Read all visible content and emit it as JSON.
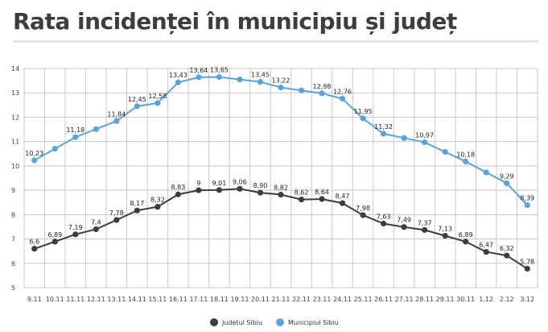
{
  "title": "Rata incidenței în municipiu și județ",
  "chart_data": {
    "type": "line",
    "title": "Rata incidenței în municipiu și județ",
    "xlabel": "",
    "ylabel": "",
    "ylim": [
      5,
      14
    ],
    "yticks": [
      "5",
      "6",
      "7",
      "8",
      "9",
      "10",
      "11",
      "12",
      "13",
      "14"
    ],
    "grid": true,
    "legend_position": "bottom",
    "categories": [
      "9.11",
      "10.11",
      "11.11",
      "12.11",
      "13.11",
      "14.11",
      "15.11",
      "16.11",
      "17.11",
      "18.11",
      "19.11",
      "20.11",
      "21.11",
      "22.11",
      "23.11",
      "24.11",
      "25.11",
      "26.11",
      "27.11",
      "28.11",
      "29.11",
      "30.11",
      "1.12",
      "2.12",
      "3.12"
    ],
    "series": [
      {
        "name": "Judetul Sibiu",
        "color": "#3d3d3d",
        "values": [
          6.6,
          6.89,
          7.19,
          7.4,
          7.78,
          8.17,
          8.32,
          8.83,
          9,
          9.01,
          9.06,
          8.9,
          8.82,
          8.62,
          8.64,
          8.47,
          7.98,
          7.63,
          7.49,
          7.37,
          7.13,
          6.89,
          6.47,
          6.32,
          5.78
        ],
        "labels": [
          "6,6",
          "6,89",
          "7,19",
          "7,4",
          "7,78",
          "8,17",
          "8,32",
          "8,83",
          "9",
          "9,01",
          "9,06",
          "8,90",
          "8,82",
          "8,62",
          "8,64",
          "8,47",
          "7,98",
          "7,63",
          "7,49",
          "7,37",
          "7,13",
          "6,89",
          "6,47",
          "6,32",
          "5,78"
        ]
      },
      {
        "name": "Municipiul Sibiu",
        "color": "#5ba4d9",
        "values": [
          10.23,
          null,
          11.18,
          null,
          11.84,
          12.45,
          12.58,
          13.43,
          13.64,
          13.65,
          null,
          13.45,
          13.22,
          null,
          12.98,
          12.76,
          11.95,
          11.32,
          null,
          10.97,
          null,
          10.18,
          null,
          9.29,
          8.39
        ],
        "labels": [
          "10,23",
          null,
          "11,18",
          null,
          "11,84",
          "12,45",
          "12,58",
          "13,43",
          "13,64",
          "13,65",
          null,
          "13,45",
          "13,22",
          null,
          "12,98",
          "12,76",
          "11,95",
          "11,32",
          null,
          "10,97",
          null,
          "10,18",
          null,
          "9,29",
          "8,39"
        ]
      }
    ]
  }
}
